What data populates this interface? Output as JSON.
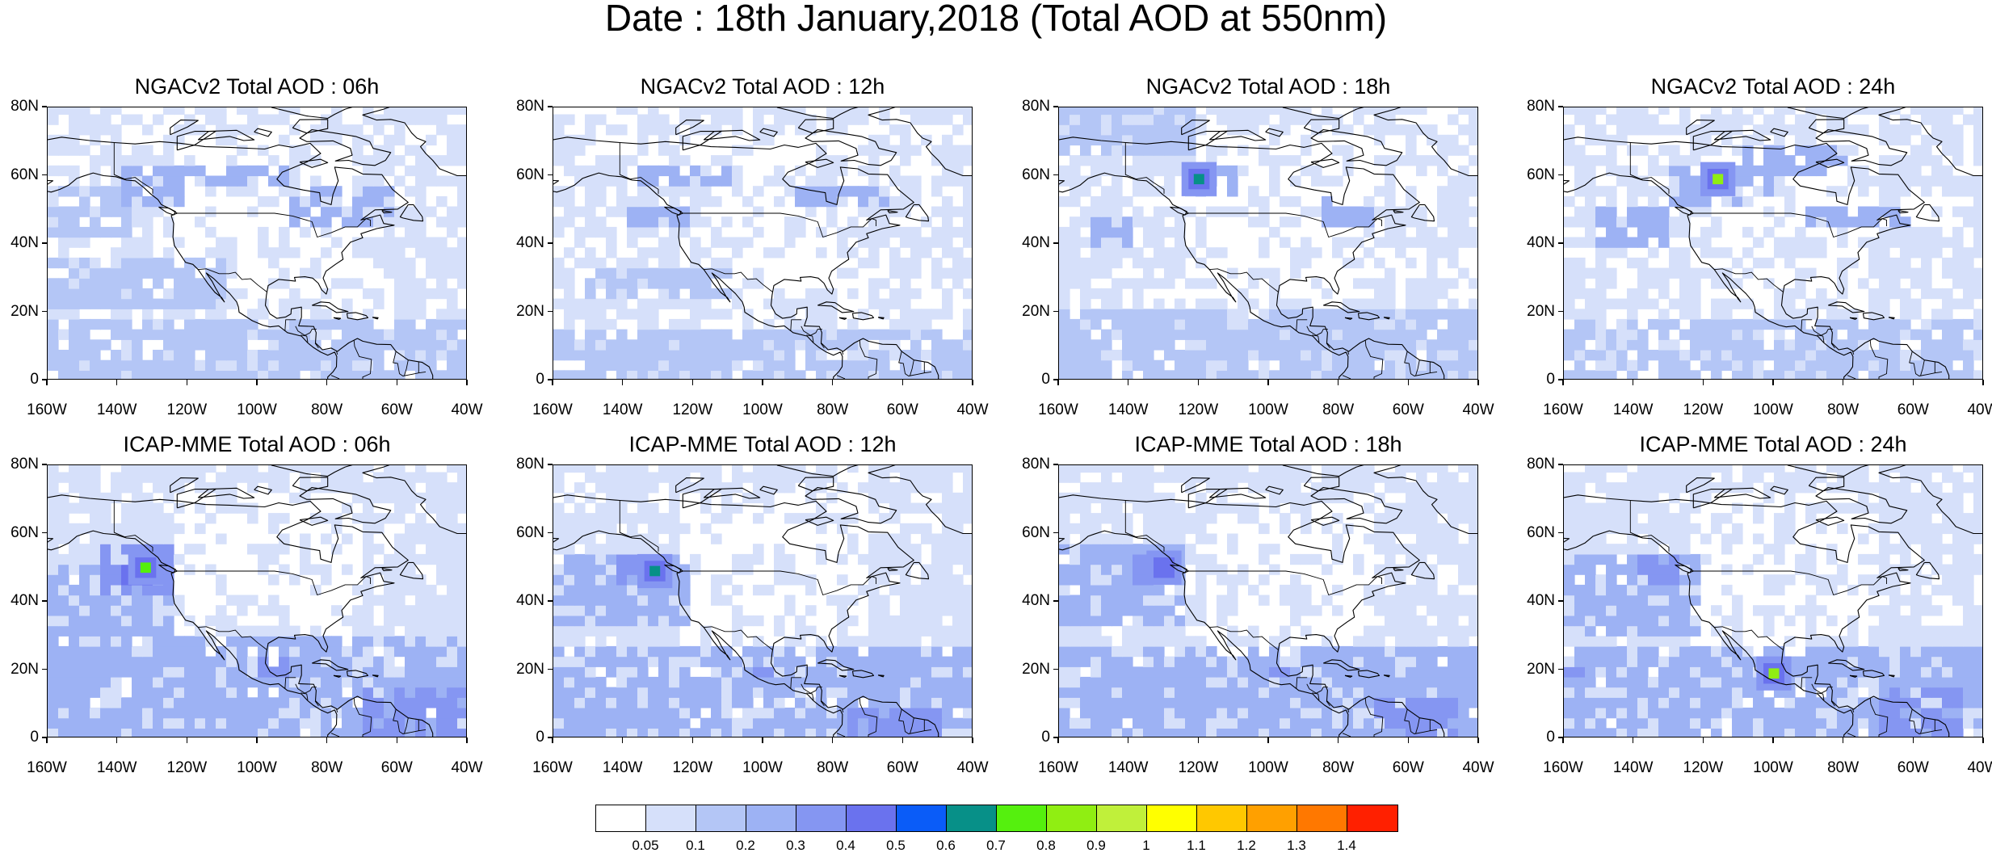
{
  "title": "Date : 18th January,2018 (Total AOD at 550nm)",
  "panels": [
    {
      "title": "NGACv2 Total AOD : 06h",
      "model": "NGACv2",
      "hour": "06h",
      "hotspot": null
    },
    {
      "title": "NGACv2 Total AOD : 12h",
      "model": "NGACv2",
      "hour": "12h",
      "hotspot": null
    },
    {
      "title": "NGACv2 Total AOD : 18h",
      "model": "NGACv2",
      "hour": "18h",
      "hotspot": {
        "lon": -120,
        "lat": 59,
        "level": "0.6"
      }
    },
    {
      "title": "NGACv2 Total AOD : 24h",
      "model": "NGACv2",
      "hour": "24h",
      "hotspot": {
        "lon": -116,
        "lat": 59,
        "level": "0.8"
      }
    },
    {
      "title": "ICAP-MME Total AOD : 06h",
      "model": "ICAP-MME",
      "hour": "06h",
      "hotspot": {
        "lon": -132,
        "lat": 50,
        "level": "0.7"
      }
    },
    {
      "title": "ICAP-MME Total AOD : 12h",
      "model": "ICAP-MME",
      "hour": "12h",
      "hotspot": {
        "lon": -131,
        "lat": 49,
        "level": "0.6"
      }
    },
    {
      "title": "ICAP-MME Total AOD : 18h",
      "model": "ICAP-MME",
      "hour": "18h",
      "hotspot": {
        "lon": -130,
        "lat": 50,
        "level": "0.4"
      }
    },
    {
      "title": "ICAP-MME Total AOD : 24h",
      "model": "ICAP-MME",
      "hour": "24h",
      "hotspot": {
        "lon": -100,
        "lat": 19,
        "level": "0.8"
      }
    }
  ],
  "axes": {
    "lat_labels": [
      "80N",
      "60N",
      "40N",
      "20N",
      "0"
    ],
    "lon_labels": [
      "160W",
      "140W",
      "120W",
      "100W",
      "80W",
      "60W",
      "40W"
    ],
    "lat_range": [
      0,
      80
    ],
    "lon_range": [
      -160,
      -40
    ]
  },
  "colorbar": {
    "labels": [
      "0.05",
      "0.1",
      "0.2",
      "0.3",
      "0.4",
      "0.5",
      "0.6",
      "0.7",
      "0.8",
      "0.9",
      "1",
      "1.1",
      "1.2",
      "1.3",
      "1.4"
    ],
    "colors": [
      "#ffffff",
      "#d6e0fa",
      "#b4c6f6",
      "#9db2f4",
      "#8596f2",
      "#6a72ee",
      "#0a5cf8",
      "#079088",
      "#55f00e",
      "#90ee12",
      "#c0f03a",
      "#ffff00",
      "#ffc800",
      "#ffa000",
      "#ff7800",
      "#ff2000"
    ]
  }
}
